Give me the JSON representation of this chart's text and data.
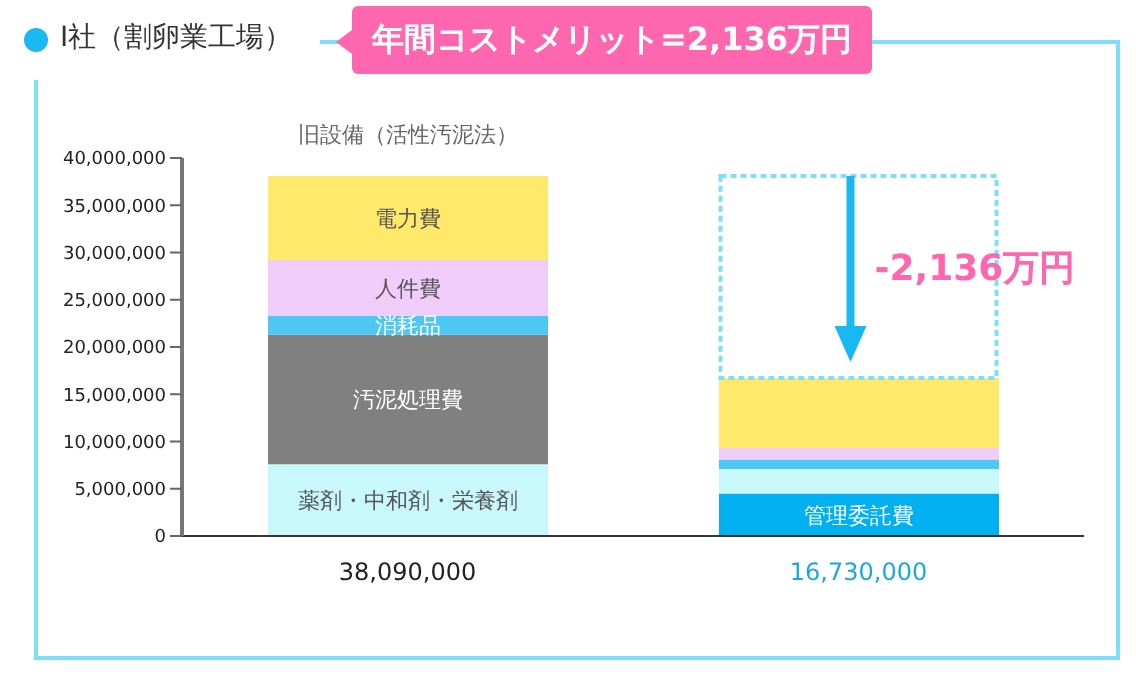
{
  "chart_data": {
    "type": "bar",
    "stacked": true,
    "title": "I社（割卵業工場）",
    "subtitle": "年間コストメリット=2,136万円",
    "categories": [
      "旧設備（活性汚泥法）",
      null
    ],
    "series": [
      {
        "name": "管理委託費",
        "color": "#00b0f0",
        "values": [
          null,
          4500000.0
        ]
      },
      {
        "name": "薬剤・中和剤・栄養剤",
        "color": "#c8f8fc",
        "values": [
          7600000.0,
          2600000.0
        ]
      },
      {
        "name": "汚泥処理費",
        "color": "#808080",
        "values": [
          13700000.0,
          null
        ]
      },
      {
        "name": "消耗品",
        "color": "#4dc8f5",
        "values": [
          2000000.0,
          1000000.0
        ]
      },
      {
        "name": "人件費",
        "color": "#f0ccfa",
        "values": [
          5900000.0,
          1200000.0
        ]
      },
      {
        "name": "電力費",
        "color": "#ffe96b",
        "values": [
          8890000.0,
          7430000.0
        ]
      }
    ],
    "totals": [
      "38,090,000",
      "16,730,000"
    ],
    "annotations": [
      "-2,136万円"
    ],
    "ylim": [
      0,
      40000000
    ],
    "yticks": [
      0,
      {
        "value": 5000000,
        "label": "5,000,000"
      },
      {
        "value": 10000000,
        "label": "10,000,000"
      },
      {
        "value": 15000000,
        "label": "15,000,000"
      },
      {
        "value": 20000000,
        "label": "20,000,000"
      },
      {
        "value": 25000000,
        "label": "25,000,000"
      },
      {
        "value": 30000000,
        "label": "30,000,000"
      },
      {
        "value": 35000000,
        "label": "35,000,000"
      },
      {
        "value": 40000000,
        "label": "40,000,000"
      }
    ],
    "grid": false,
    "legend": false
  }
}
